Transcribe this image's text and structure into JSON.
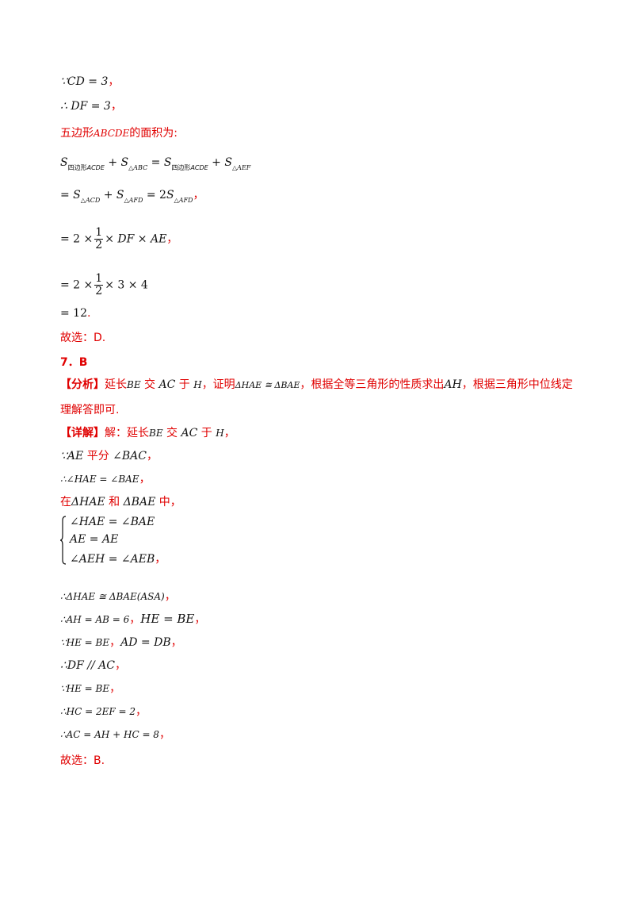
{
  "lines": {
    "l1": "∵CD = 3",
    "l2": "∴ DF = 3",
    "l3_cn": "五边形",
    "l3_name": "ABCDE",
    "l3_tail": "的面积为:",
    "l7": "= 12",
    "l8": "故选：D.",
    "q7": "7．B",
    "analysis_tag": "【分析】",
    "analysis_1a": "延长",
    "analysis_1b": "BE",
    "analysis_1c": " 交 ",
    "analysis_1d": "AC",
    "analysis_1e": " 于 ",
    "analysis_1f": "H",
    "analysis_1g": "，证明",
    "analysis_1h": "ΔHAE ≅ ΔBAE",
    "analysis_1i": "，根据全等三角形的性质求出",
    "analysis_1j": "AH",
    "analysis_1k": "，根据三角形中位线定",
    "analysis_2": "理解答即可.",
    "detail_tag": "【详解】",
    "detail_1a": "解：延长",
    "detail_1b": "BE",
    "detail_1c": " 交 ",
    "detail_1d": "AC",
    "detail_1e": " 于 ",
    "detail_1f": "H",
    "detail_1g": "，",
    "d2a": "∵AE",
    "d2b": " 平分 ",
    "d2c": "∠BAC",
    "d3": "∴∠HAE = ∠BAE",
    "d4a": "在",
    "d4b": "ΔHAE",
    "d4c": " 和 ",
    "d4d": "ΔBAE",
    "d4e": " 中，",
    "sys1": "∠HAE = ∠BAE",
    "sys2": "AE = AE",
    "sys3": "∠AEH = ∠AEB",
    "d5": "∴ΔHAE ≅ ΔBAE(ASA)",
    "d6a": "∴AH = AB = 6",
    "d6b": "HE = BE",
    "d7a": "∵HE = BE",
    "d7b": "AD = DB",
    "d8": "∴DF // AC",
    "d9": "∵HE = BE",
    "d10": "∴HC = 2EF = 2",
    "d11": "∴AC = AH + HC = 8",
    "d12": "故选：B.",
    "comma": "，",
    "period": "."
  },
  "colors": {
    "accent": "#e00000",
    "text": "#111111"
  }
}
